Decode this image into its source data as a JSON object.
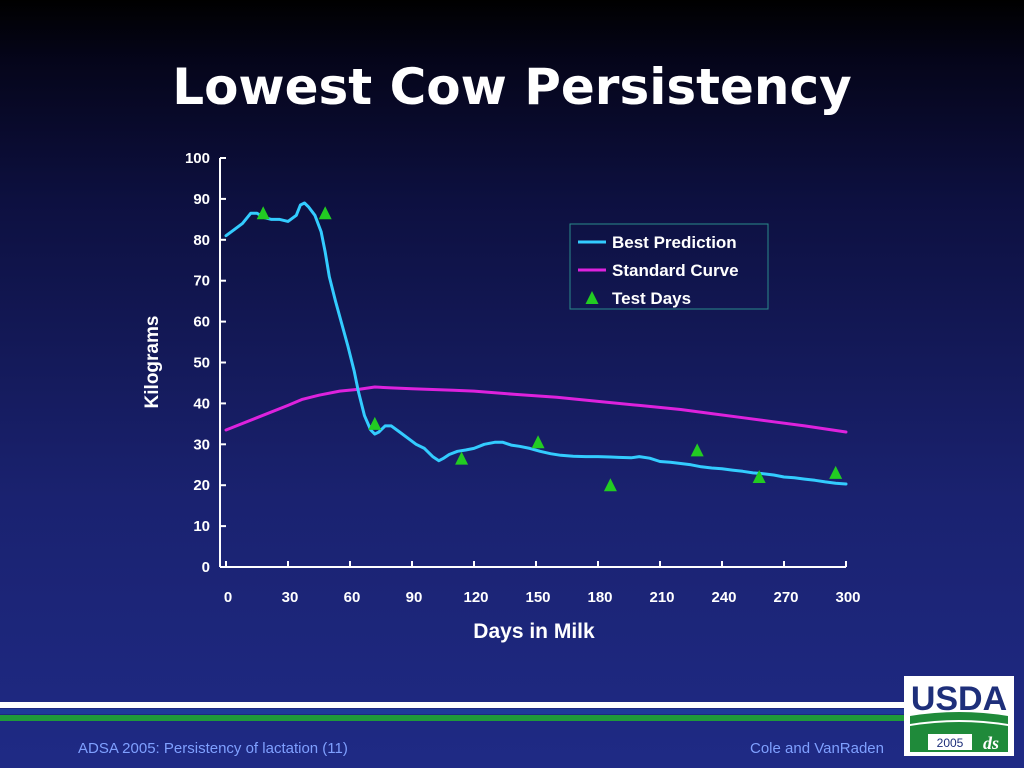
{
  "slide": {
    "title": "Lowest Cow Persistency",
    "footer_left": "ADSA 2005: Persistency of lactation (11)",
    "footer_right": "Cole and VanRaden"
  },
  "logo": {
    "text": "USDA",
    "year": "2005",
    "mark": "dairy science"
  },
  "colors": {
    "best_prediction": "#33ccff",
    "standard_curve": "#dd22dd",
    "test_days": "#22cc22",
    "axis": "#ffffff"
  },
  "chart_data": {
    "type": "line",
    "title": "",
    "xlabel": "Days in Milk",
    "ylabel": "Kilograms",
    "xlim": [
      0,
      300
    ],
    "ylim": [
      0,
      100
    ],
    "xticks": [
      0,
      30,
      60,
      90,
      120,
      150,
      180,
      210,
      240,
      270,
      300
    ],
    "yticks": [
      0,
      10,
      20,
      30,
      40,
      50,
      60,
      70,
      80,
      90,
      100
    ],
    "grid": false,
    "legend": {
      "placement": "top-right",
      "entries": [
        "Best Prediction",
        "Standard Curve",
        "Test Days"
      ]
    },
    "series": [
      {
        "name": "Best Prediction",
        "kind": "line",
        "x": [
          0,
          4,
          8,
          12,
          15,
          18,
          22,
          26,
          30,
          34,
          36,
          38,
          40,
          43,
          46,
          48,
          50,
          53,
          56,
          59,
          62,
          64,
          67,
          70,
          72,
          74,
          77,
          80,
          84,
          88,
          92,
          96,
          100,
          103,
          105,
          108,
          112,
          116,
          120,
          125,
          130,
          134,
          138,
          142,
          147,
          152,
          157,
          162,
          168,
          174,
          180,
          186,
          190,
          196,
          200,
          205,
          210,
          215,
          220,
          225,
          230,
          235,
          240,
          245,
          250,
          255,
          260,
          265,
          270,
          275,
          280,
          285,
          290,
          295,
          300
        ],
        "y": [
          81,
          82.5,
          84,
          86.5,
          86.5,
          85.5,
          85,
          85,
          84.5,
          86,
          88.5,
          89,
          88,
          86,
          82,
          77,
          71,
          65,
          59.5,
          54,
          48,
          43,
          37,
          33.5,
          32.5,
          33,
          34.5,
          34.5,
          33,
          31.5,
          30,
          29,
          27,
          26,
          26.5,
          27.5,
          28.3,
          28.6,
          29,
          30,
          30.5,
          30.5,
          29.8,
          29.5,
          29,
          28.3,
          27.7,
          27.3,
          27.1,
          27,
          27,
          26.9,
          26.8,
          26.7,
          27,
          26.6,
          25.8,
          25.6,
          25.3,
          25,
          24.5,
          24.2,
          24,
          23.7,
          23.4,
          23,
          22.8,
          22.5,
          22,
          21.8,
          21.5,
          21.2,
          20.8,
          20.5,
          20.3
        ]
      },
      {
        "name": "Standard Curve",
        "kind": "line",
        "x": [
          0,
          15,
          30,
          37,
          45,
          55,
          65,
          72,
          80,
          90,
          100,
          110,
          120,
          140,
          160,
          180,
          200,
          220,
          235,
          250,
          265,
          280,
          300
        ],
        "y": [
          33.5,
          36.5,
          39.5,
          41,
          42,
          43,
          43.5,
          44,
          43.8,
          43.6,
          43.4,
          43.2,
          43,
          42.2,
          41.5,
          40.5,
          39.5,
          38.5,
          37.5,
          36.5,
          35.5,
          34.5,
          33
        ]
      },
      {
        "name": "Test Days",
        "kind": "scatter",
        "x": [
          18,
          48,
          72,
          114,
          151,
          186,
          228,
          258,
          295
        ],
        "y": [
          86.5,
          86.5,
          35,
          26.5,
          30.5,
          20,
          28.5,
          22,
          23
        ]
      }
    ]
  }
}
